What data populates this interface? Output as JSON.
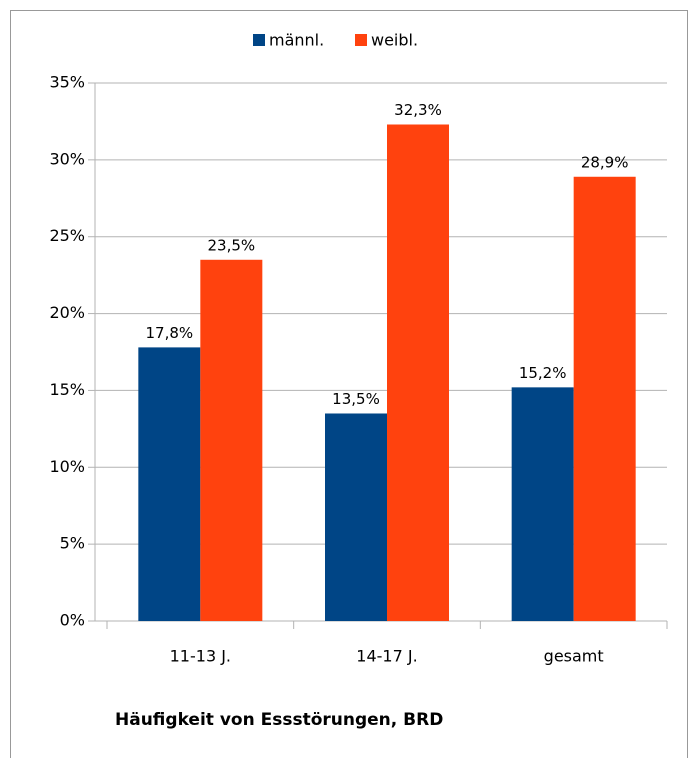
{
  "chart_data": {
    "type": "bar",
    "title": "Häufigkeit von Essstörungen, BRD",
    "categories": [
      "11-13 J.",
      "14-17 J.",
      "gesamt"
    ],
    "series": [
      {
        "name": "männl.",
        "color": "#004586",
        "values": [
          17.8,
          13.5,
          15.2
        ],
        "value_labels": [
          "17,8%",
          "13,5%",
          "15,2%"
        ]
      },
      {
        "name": "weibl.",
        "color": "#ff420e",
        "values": [
          23.5,
          32.3,
          28.9
        ],
        "value_labels": [
          "23,5%",
          "32,3%",
          "28,9%"
        ]
      }
    ],
    "ylim": [
      0,
      35
    ],
    "yticks": [
      {
        "value": 0,
        "label": "0%"
      },
      {
        "value": 5,
        "label": "5%"
      },
      {
        "value": 10,
        "label": "10%"
      },
      {
        "value": 15,
        "label": "15%"
      },
      {
        "value": 20,
        "label": "20%"
      },
      {
        "value": 25,
        "label": "25%"
      },
      {
        "value": 30,
        "label": "30%"
      },
      {
        "value": 35,
        "label": "35%"
      }
    ],
    "grid": true,
    "legend": "top"
  }
}
